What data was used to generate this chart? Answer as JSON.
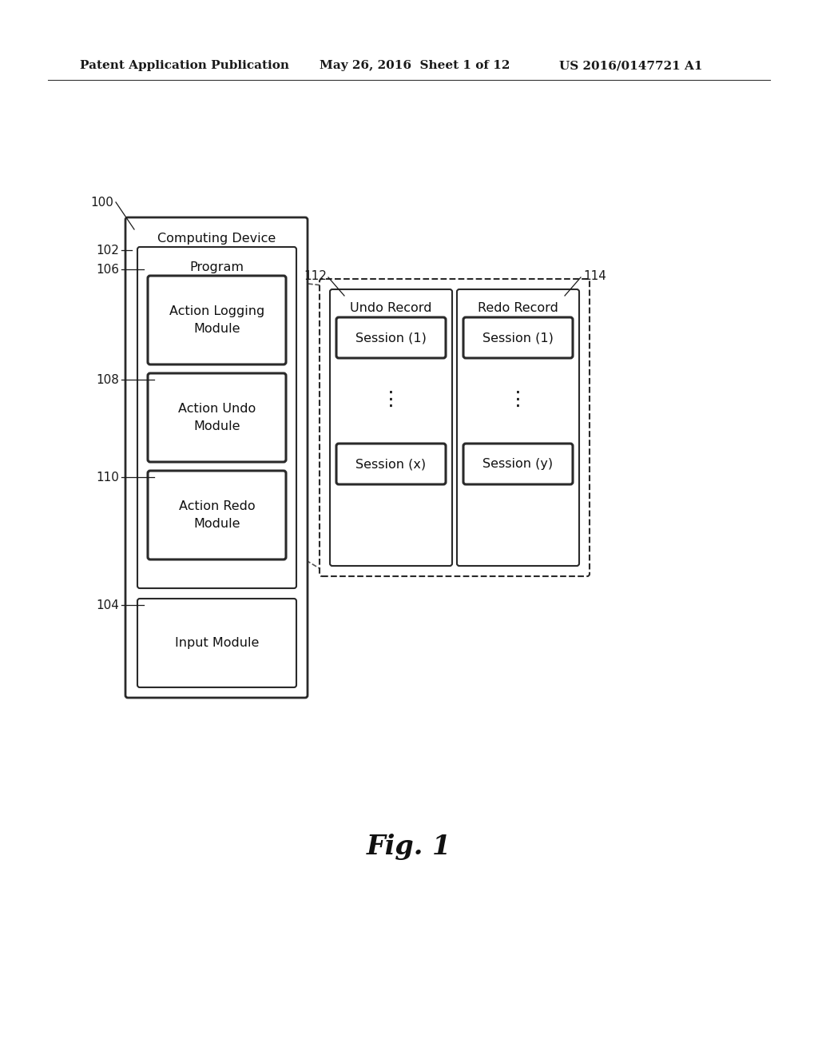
{
  "bg_color": "#ffffff",
  "header_left": "Patent Application Publication",
  "header_mid": "May 26, 2016  Sheet 1 of 12",
  "header_right": "US 2016/0147721 A1",
  "fig_label": "Fig. 1",
  "computing_device": "Computing Device",
  "program": "Program",
  "action_logging": "Action Logging\nModule",
  "action_undo": "Action Undo\nModule",
  "action_redo": "Action Redo\nModule",
  "input_module": "Input Module",
  "undo_record": "Undo Record",
  "redo_record": "Redo Record",
  "undo_session1": "Session (1)",
  "undo_sessionx": "Session (x)",
  "redo_session1": "Session (1)",
  "redo_sessiony": "Session (y)",
  "label_100": "100",
  "label_102": "102",
  "label_104": "104",
  "label_106": "106",
  "label_108": "108",
  "label_110": "110",
  "label_112": "112",
  "label_114": "114"
}
